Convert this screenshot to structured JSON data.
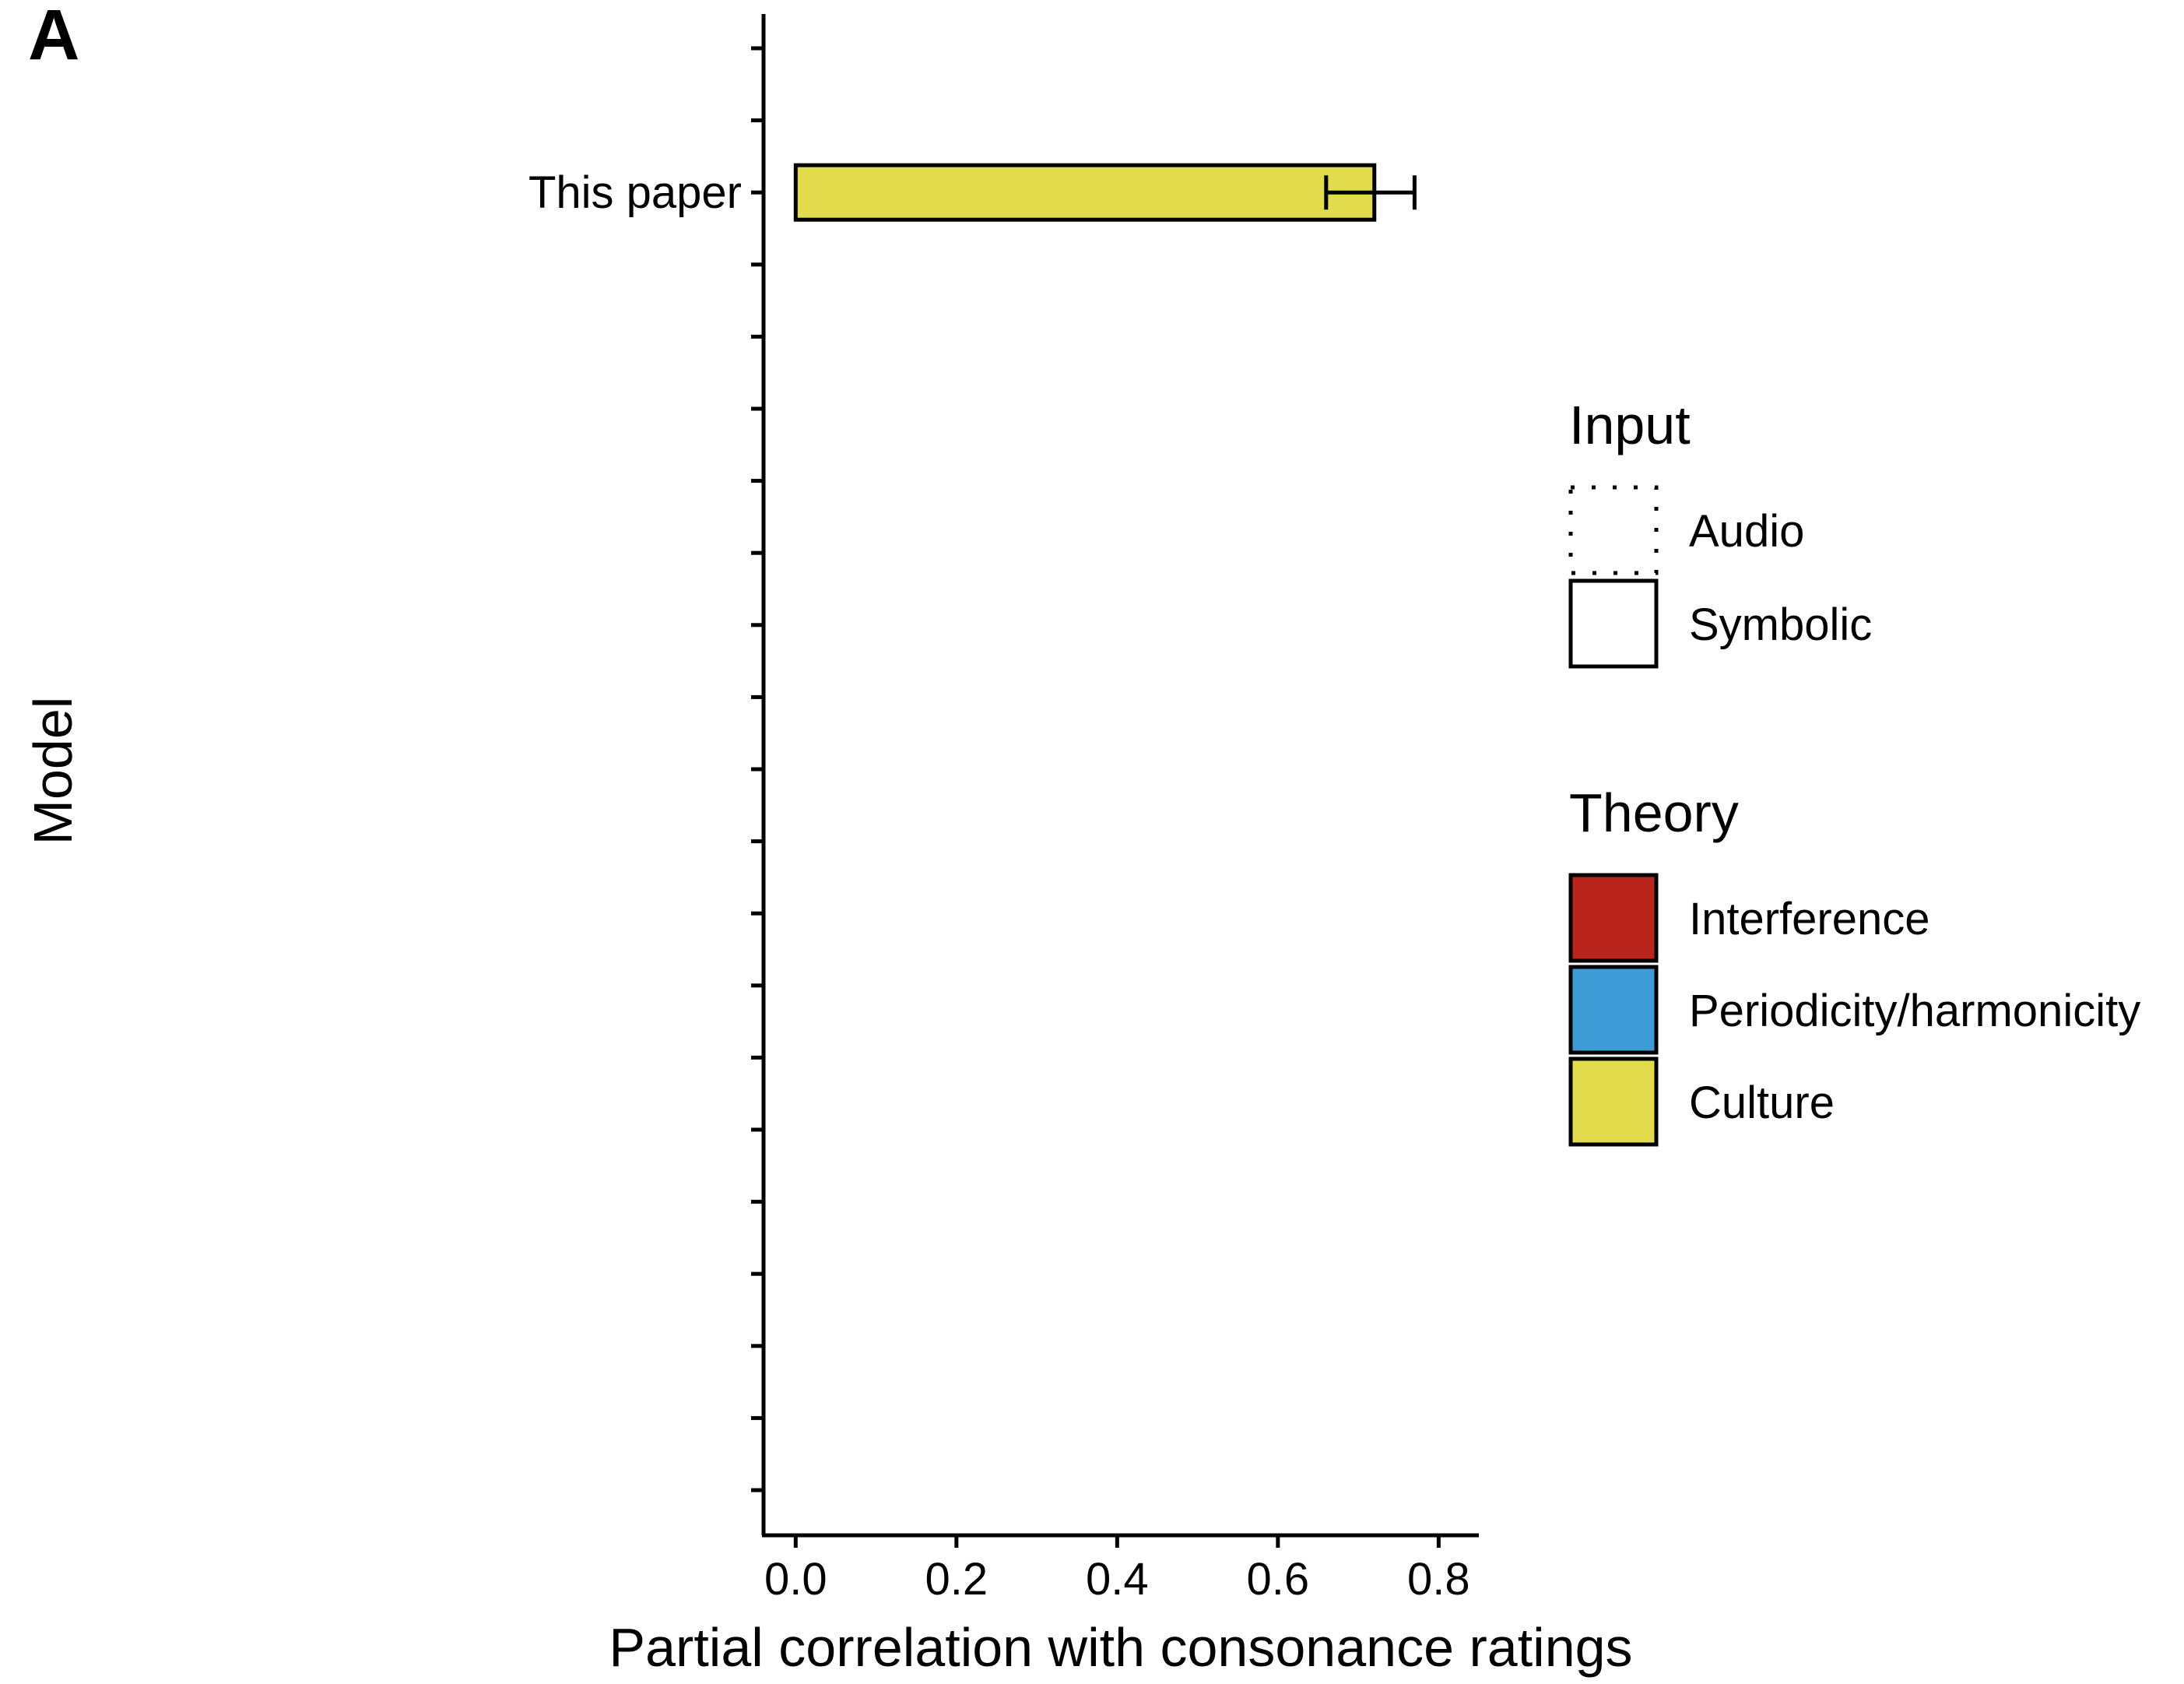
{
  "panel_label": "A",
  "chart_data": {
    "type": "bar",
    "orientation": "horizontal",
    "categories": [
      "This paper"
    ],
    "series": [
      {
        "values": [
          0.72
        ],
        "error_low": [
          0.66
        ],
        "error_high": [
          0.77
        ],
        "theory": [
          "Culture"
        ],
        "input": [
          "Symbolic"
        ]
      }
    ],
    "xlabel": "Partial correlation with consonance ratings",
    "ylabel": "Model",
    "xlim": [
      -0.04,
      0.85
    ],
    "x_ticks": [
      0.0,
      0.2,
      0.4,
      0.6,
      0.8
    ],
    "x_tick_labels": [
      "0.0",
      "0.2",
      "0.4",
      "0.6",
      "0.8"
    ],
    "y_tick_count": 21,
    "category_tick_index": 2,
    "grid": false,
    "legend_placement": "right",
    "legend": {
      "input": {
        "title": "Input",
        "items": [
          {
            "label": "Audio",
            "style": "dotted"
          },
          {
            "label": "Symbolic",
            "style": "solid"
          }
        ]
      },
      "theory": {
        "title": "Theory",
        "items": [
          {
            "label": "Interference",
            "color": "#b9241c"
          },
          {
            "label": "Periodicity/harmonicity",
            "color": "#3d9cd6"
          },
          {
            "label": "Culture",
            "color": "#e2dc4c"
          }
        ]
      }
    }
  }
}
